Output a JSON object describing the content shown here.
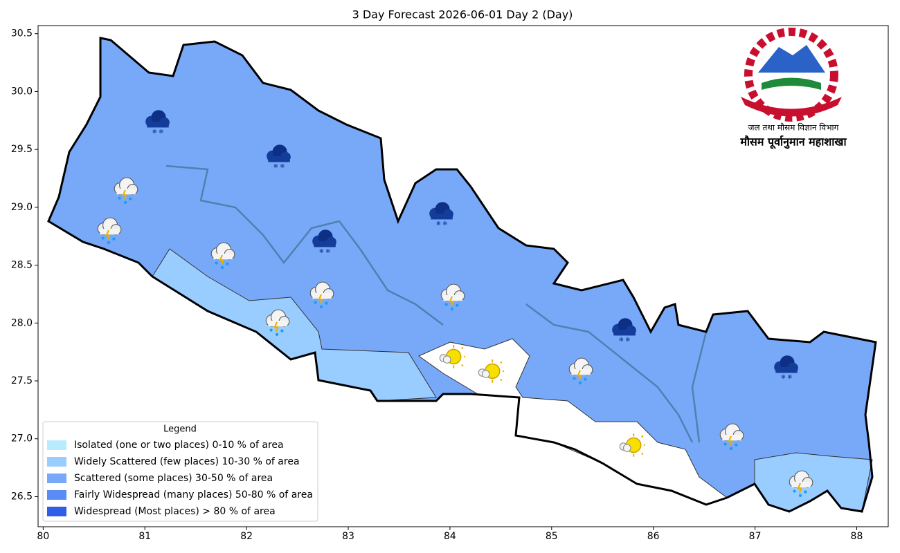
{
  "chart_data": {
    "type": "map",
    "title": "3 Day Forecast 2026-06-01 Day 2 (Day)",
    "xlim": [
      79.95,
      88.31
    ],
    "ylim": [
      26.24,
      30.57
    ],
    "xticks": [
      80,
      81,
      82,
      83,
      84,
      85,
      86,
      87,
      88
    ],
    "yticks": [
      26.5,
      {
        "value": 27,
        "label": "27.0"
      },
      27.5,
      {
        "value": 28,
        "label": "28.0"
      },
      28.5,
      {
        "value": 29,
        "label": "29.0"
      },
      29.5,
      {
        "value": 30,
        "label": "30.0"
      },
      30.5
    ],
    "legend": {
      "title": "Legend",
      "position": "lower left",
      "entries": [
        {
          "label": "Isolated (one or two places)  0-10 % of area",
          "color": "#b8ecfc"
        },
        {
          "label": "Widely Scattered (few places)  10-30 % of area",
          "color": "#99ccff"
        },
        {
          "label": "Scattered (some places)  30-50 % of area",
          "color": "#78a8f8"
        },
        {
          "label": "Fairly Widespread (many places)  50-80 % of area",
          "color": "#5a8cf6"
        },
        {
          "label": "Widespread (Most places) > 80 % of area",
          "color": "#2f5ee6"
        }
      ]
    },
    "logo": {
      "line1": "जल तथा मौसम विज्ञान विभाग",
      "line2": "मौसम पूर्वानुमान महाशाखा"
    }
  }
}
